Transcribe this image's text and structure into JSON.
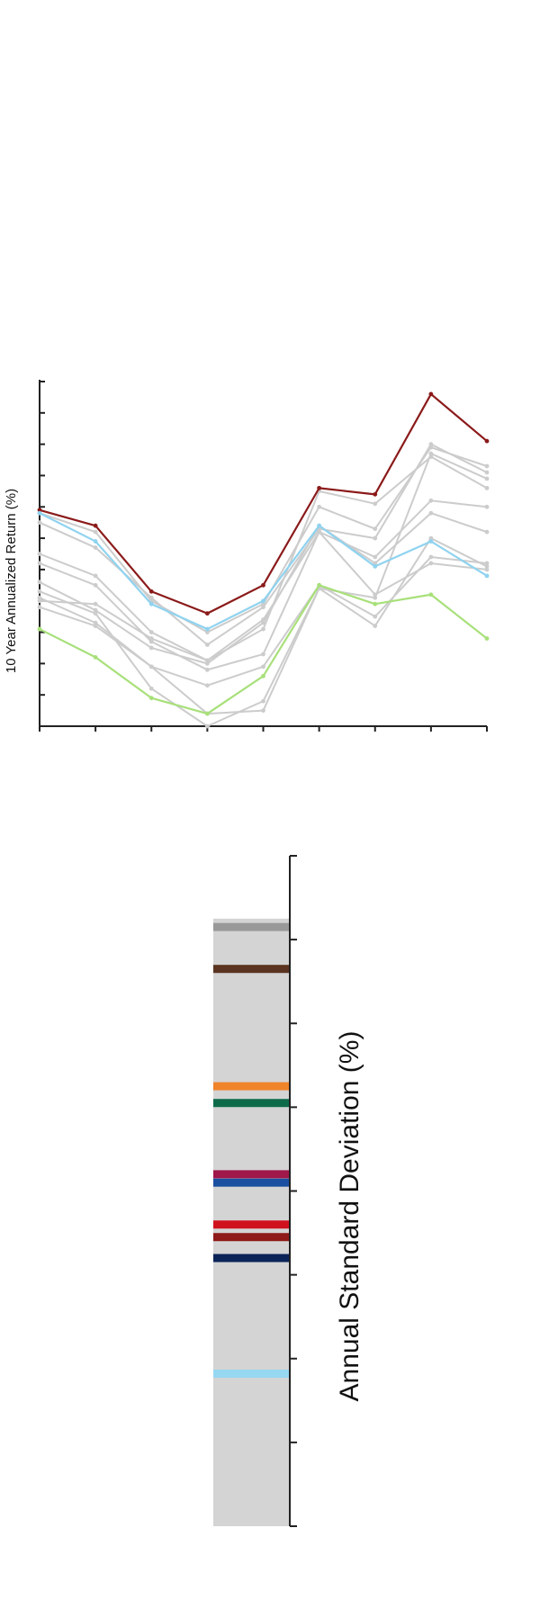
{
  "chart_data": [
    {
      "type": "line",
      "title": "",
      "xlabel": "",
      "ylabel": "10 Year Annualized Return (%)",
      "x": [
        1,
        2,
        3,
        4,
        5,
        6,
        7,
        8,
        9
      ],
      "ylim": [
        0,
        11
      ],
      "grid": false,
      "legend": "none",
      "series": [
        {
          "color": "#8b1a1a",
          "values": [
            6.9,
            6.4,
            4.3,
            3.6,
            4.5,
            7.6,
            7.4,
            10.6,
            9.1
          ]
        },
        {
          "color": "#8fd3f0",
          "values": [
            6.8,
            5.9,
            3.9,
            3.1,
            4.0,
            6.4,
            5.1,
            5.9,
            4.8
          ]
        },
        {
          "color": "#a8e07a",
          "values": [
            3.1,
            2.2,
            0.9,
            0.4,
            1.6,
            4.5,
            3.9,
            4.2,
            2.8
          ]
        },
        {
          "color": "#cccccc",
          "values": [
            6.5,
            5.7,
            4.1,
            2.6,
            3.8,
            6.3,
            6.0,
            9.0,
            8.1
          ]
        },
        {
          "color": "#cccccc",
          "values": [
            6.8,
            6.2,
            4.0,
            3.0,
            3.9,
            7.0,
            6.3,
            8.9,
            8.3
          ]
        },
        {
          "color": "#cccccc",
          "values": [
            5.5,
            4.8,
            3.0,
            2.1,
            3.1,
            7.5,
            7.1,
            8.6,
            7.6
          ]
        },
        {
          "color": "#cccccc",
          "values": [
            5.2,
            4.5,
            2.7,
            1.8,
            2.3,
            6.2,
            5.4,
            7.2,
            7.0
          ]
        },
        {
          "color": "#cccccc",
          "values": [
            4.6,
            3.7,
            2.5,
            2.0,
            3.3,
            6.4,
            5.2,
            6.8,
            6.2
          ]
        },
        {
          "color": "#cccccc",
          "values": [
            4.1,
            3.3,
            1.9,
            1.3,
            1.9,
            4.5,
            3.5,
            5.4,
            5.2
          ]
        },
        {
          "color": "#cccccc",
          "values": [
            4.0,
            3.9,
            2.8,
            2.1,
            3.4,
            6.2,
            4.2,
            5.2,
            5.0
          ]
        },
        {
          "color": "#cccccc",
          "values": [
            4.3,
            3.6,
            1.2,
            0.0,
            0.8,
            4.4,
            4.1,
            8.7,
            7.9
          ]
        },
        {
          "color": "#cccccc",
          "values": [
            3.8,
            3.2,
            1.9,
            0.4,
            0.5,
            4.4,
            3.2,
            6.0,
            5.1
          ]
        }
      ]
    },
    {
      "type": "strip",
      "title": "",
      "xlabel": "",
      "ylabel": "Annual Standard Deviation (%)",
      "ylim": [
        0,
        8
      ],
      "grid": false,
      "legend": "none",
      "background_color": "#d4d4d4",
      "markers": [
        {
          "color": "#999999",
          "value": 7.15
        },
        {
          "color": "#5a3420",
          "value": 6.65
        },
        {
          "color": "#f0842a",
          "value": 5.25
        },
        {
          "color": "#0e6b4a",
          "value": 5.05
        },
        {
          "color": "#a0174a",
          "value": 4.2
        },
        {
          "color": "#1a50a0",
          "value": 4.1
        },
        {
          "color": "#d0121f",
          "value": 3.6
        },
        {
          "color": "#8e1a1a",
          "value": 3.45
        },
        {
          "color": "#0b2458",
          "value": 3.2
        },
        {
          "color": "#96d8f2",
          "value": 1.82
        }
      ]
    }
  ]
}
